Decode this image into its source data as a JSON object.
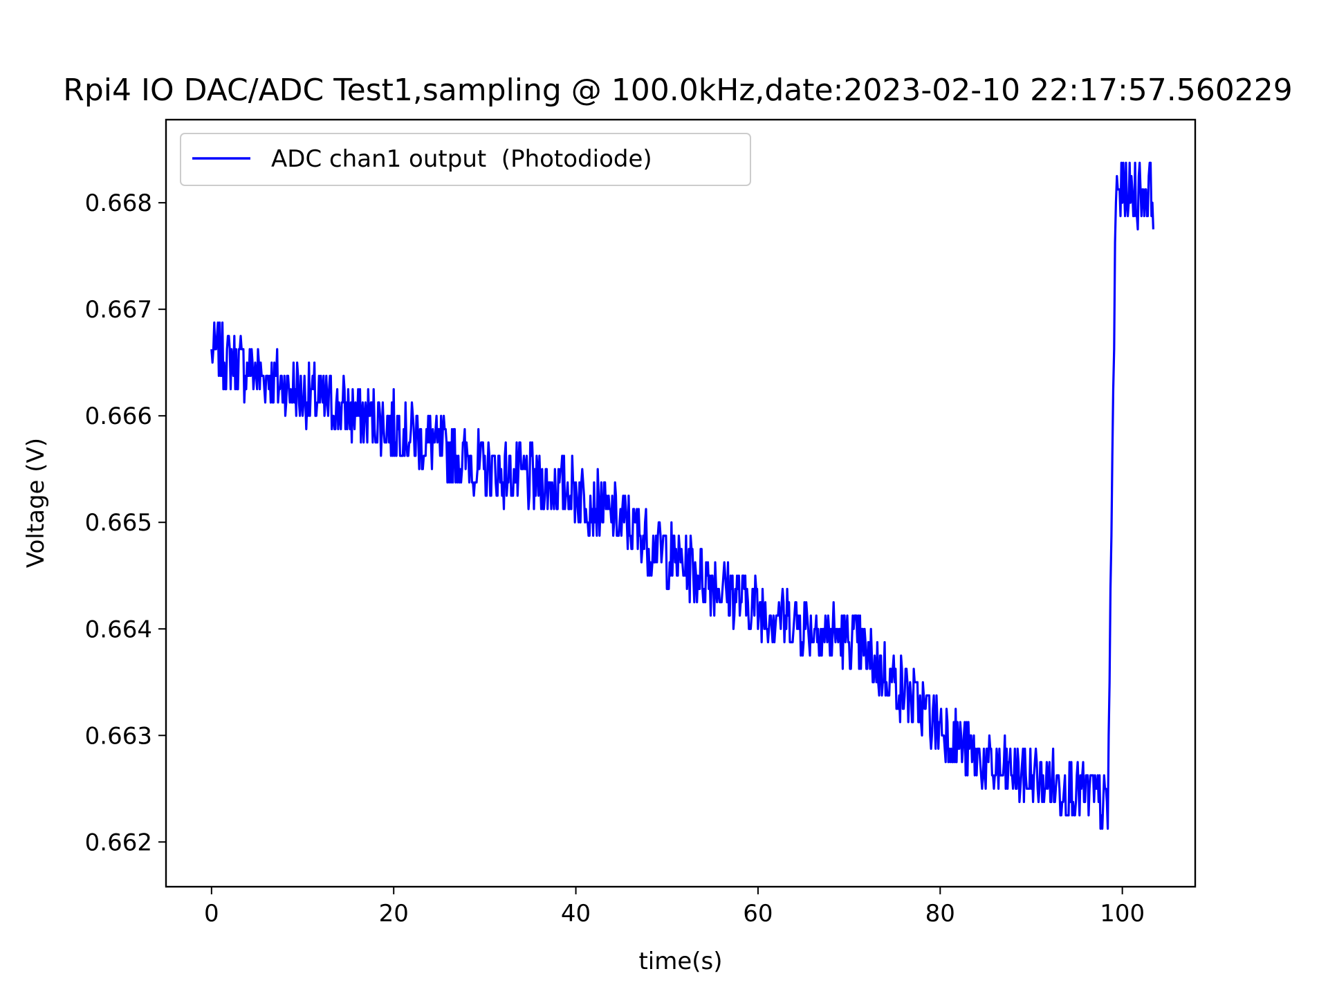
{
  "chart_data": {
    "type": "line",
    "title": "Rpi4 IO DAC/ADC Test1,sampling @ 100.0kHz,date:2023-02-10 22:17:57.560229",
    "xlabel": "time(s)",
    "ylabel": "Voltage (V)",
    "xlim": [
      -5,
      108
    ],
    "ylim": [
      0.66158,
      0.66878
    ],
    "xticks": [
      0,
      20,
      40,
      60,
      80,
      100
    ],
    "yticks": [
      0.662,
      0.663,
      0.664,
      0.665,
      0.666,
      0.667,
      0.668
    ],
    "xtick_labels": [
      "0",
      "20",
      "40",
      "60",
      "80",
      "100"
    ],
    "ytick_labels": [
      "0.662",
      "0.663",
      "0.664",
      "0.665",
      "0.666",
      "0.667",
      "0.668"
    ],
    "grid": false,
    "legend_position": "upper-left",
    "series": [
      {
        "name": "ADC chan1 output  (Photodiode)",
        "color": "#0000ff",
        "trend": [
          [
            0,
            0.6666
          ],
          [
            10,
            0.6662
          ],
          [
            20,
            0.6659
          ],
          [
            30,
            0.6655
          ],
          [
            40,
            0.6653
          ],
          [
            50,
            0.6647
          ],
          [
            60,
            0.6642
          ],
          [
            70,
            0.6639
          ],
          [
            80,
            0.6631
          ],
          [
            85,
            0.6627
          ],
          [
            90,
            0.6626
          ],
          [
            95,
            0.6625
          ],
          [
            98.4,
            0.6623
          ],
          [
            99.3,
            0.6681
          ],
          [
            103.4,
            0.6681
          ]
        ],
        "noise_amplitude": 0.0003
      }
    ]
  }
}
